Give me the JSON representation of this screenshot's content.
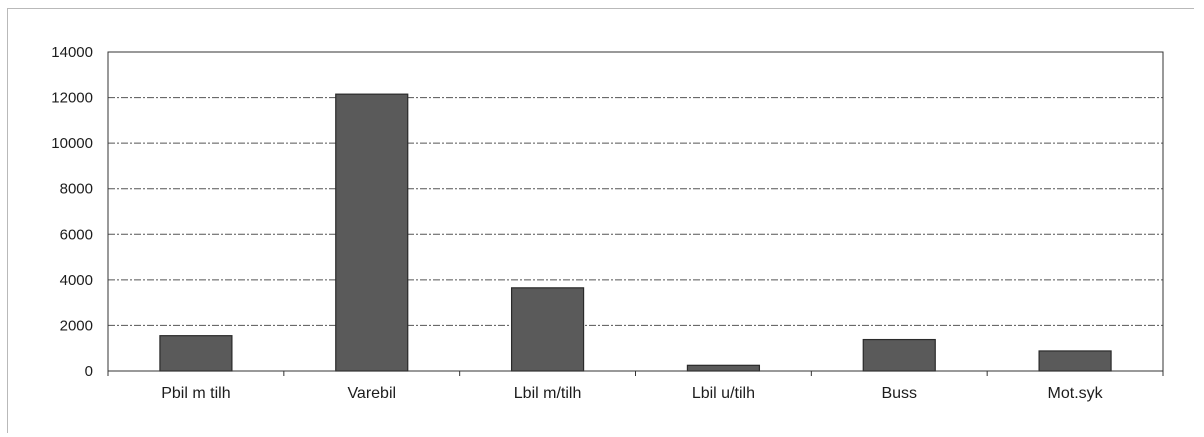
{
  "chart_data": {
    "type": "bar",
    "categories": [
      "Pbil m tilh",
      "Varebil",
      "Lbil m/tilh",
      "Lbil u/tilh",
      "Buss",
      "Mot.syk"
    ],
    "values": [
      1550,
      12150,
      3650,
      250,
      1380,
      880
    ],
    "ylim": [
      0,
      14000
    ],
    "yticks": [
      0,
      2000,
      4000,
      6000,
      8000,
      10000,
      12000,
      14000
    ],
    "title": "",
    "xlabel": "",
    "ylabel": "",
    "grid": true,
    "legend": "none",
    "bar_color": "#5a5a5a",
    "bar_edge_color": "#2a2a2a",
    "grid_color": "#555555",
    "axis_color": "#333333"
  }
}
